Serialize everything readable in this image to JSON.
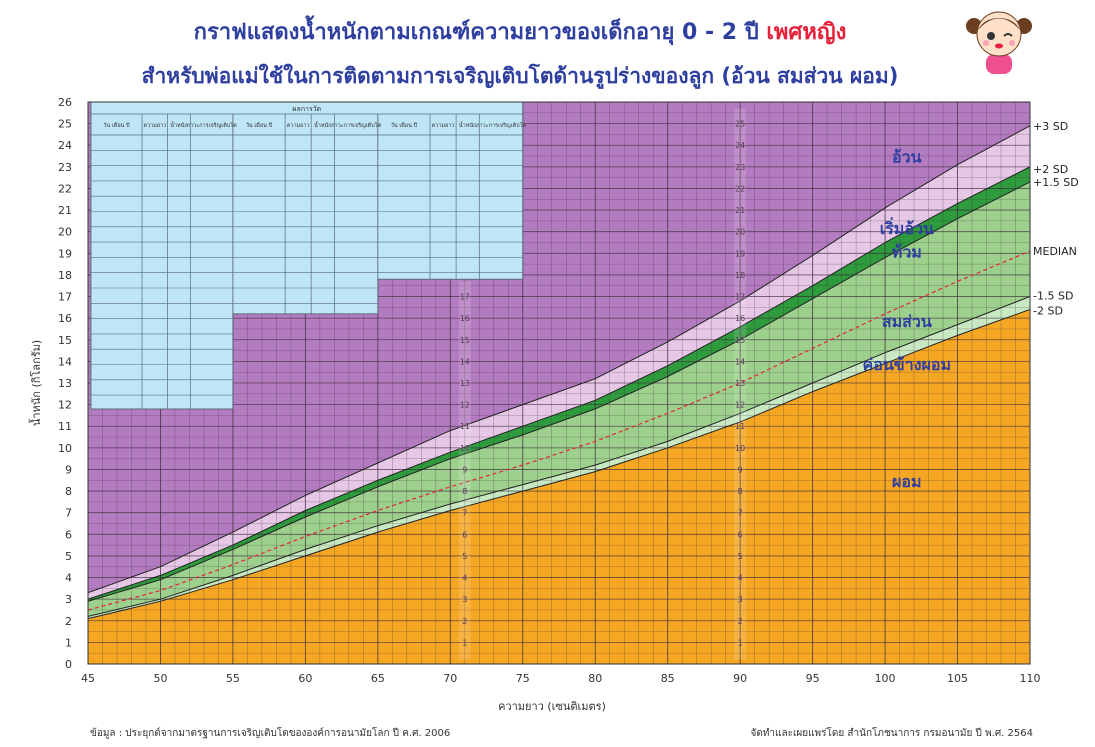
{
  "header": {
    "title_main": "กราฟแสดงน้ำหนักตามเกณฑ์ความยาวของเด็กอายุ 0 - 2 ปี",
    "title_gender": "เพศหญิง",
    "subtitle": "สำหรับพ่อแม่ใช้ในการติดตามการเจริญเติบโตด้านรูปร่างของลูก (อ้วน สมส่วน ผอม)"
  },
  "footer": {
    "source": "ข้อมูล : ประยุกต์จากมาตรฐานการเจริญเติบโตขององค์การอนามัยโลก ปี ค.ศ. 2006",
    "publisher": "จัดทำและเผยแพร่โดย สำนักโภชนาการ กรมอนามัย ปี พ.ศ. 2564"
  },
  "record_table": {
    "title": "ผลการวัด",
    "columns": [
      "วัน เดือน ปี",
      "ความยาว",
      "น้ำหนัก",
      "ภาวะการเจริญเติบโต"
    ]
  },
  "colors": {
    "obese": "#b47cc0",
    "overweight": "#e6c7e6",
    "risk": "#2e9b3c",
    "normal": "#9dd08c",
    "low_normal": "#c7e8c0",
    "thin": "#f5a623",
    "table": "#bfe6f7",
    "median": "#e8213a",
    "title": "#2f3fa0"
  },
  "chart_data": {
    "type": "line",
    "xlabel": "ความยาว (เซนติเมตร)",
    "ylabel": "น้ำหนัก (กิโลกรัม)",
    "xlim": [
      45,
      110
    ],
    "ylim": [
      0,
      26
    ],
    "x_ticks": [
      45,
      50,
      55,
      60,
      65,
      70,
      75,
      80,
      85,
      90,
      95,
      100,
      105,
      110
    ],
    "y_ticks": [
      0,
      1,
      2,
      3,
      4,
      5,
      6,
      7,
      8,
      9,
      10,
      11,
      12,
      13,
      14,
      15,
      16,
      17,
      18,
      19,
      20,
      21,
      22,
      23,
      24,
      25,
      26
    ],
    "grid": true,
    "x": [
      45,
      50,
      55,
      60,
      65,
      70,
      75,
      80,
      85,
      90,
      95,
      100,
      105,
      110
    ],
    "series": [
      {
        "name": "+3 SD",
        "values": [
          3.3,
          4.5,
          6.1,
          7.8,
          9.3,
          10.8,
          12.0,
          13.2,
          14.9,
          16.8,
          18.9,
          21.1,
          23.1,
          24.9
        ]
      },
      {
        "name": "+2 SD",
        "values": [
          3.0,
          4.1,
          5.5,
          7.1,
          8.5,
          9.8,
          11.0,
          12.2,
          13.8,
          15.6,
          17.5,
          19.5,
          21.3,
          23.0
        ]
      },
      {
        "name": "+1.5 SD",
        "values": [
          2.9,
          3.9,
          5.3,
          6.8,
          8.2,
          9.5,
          10.6,
          11.8,
          13.3,
          15.0,
          16.9,
          18.8,
          20.6,
          22.3
        ]
      },
      {
        "name": "MEDIAN",
        "values": [
          2.5,
          3.4,
          4.6,
          5.9,
          7.1,
          8.2,
          9.2,
          10.3,
          11.6,
          13.0,
          14.6,
          16.2,
          17.7,
          19.1
        ]
      },
      {
        "name": "-1.5 SD",
        "values": [
          2.2,
          3.0,
          4.1,
          5.3,
          6.4,
          7.4,
          8.3,
          9.2,
          10.3,
          11.6,
          13.0,
          14.4,
          15.7,
          17.0
        ]
      },
      {
        "name": "-2 SD",
        "values": [
          2.1,
          2.9,
          3.9,
          5.0,
          6.1,
          7.1,
          8.0,
          8.9,
          10.0,
          11.2,
          12.6,
          13.9,
          15.2,
          16.4
        ]
      }
    ],
    "zones": [
      {
        "label": "อ้วน",
        "x": 101.5,
        "y": 23.2
      },
      {
        "label": "เริ่มอ้วน",
        "x": 101.5,
        "y": 19.9
      },
      {
        "label": "ท้วม",
        "x": 101.5,
        "y": 18.8
      },
      {
        "label": "สมส่วน",
        "x": 101.5,
        "y": 15.6
      },
      {
        "label": "ค่อนข้างผอม",
        "x": 101.5,
        "y": 13.6
      },
      {
        "label": "ผอม",
        "x": 101.5,
        "y": 8.2
      }
    ],
    "inner_scale_left": {
      "x": 71,
      "labels": [
        1,
        2,
        3,
        4,
        5,
        6,
        7,
        8,
        9,
        10,
        11,
        12,
        13,
        14,
        15,
        16,
        17
      ]
    },
    "inner_scale_right": {
      "x": 90,
      "labels": [
        1,
        2,
        3,
        4,
        5,
        6,
        7,
        8,
        9,
        10,
        11,
        12,
        13,
        14,
        15,
        16,
        17,
        18,
        19,
        20,
        21,
        22,
        23,
        24,
        25
      ]
    }
  }
}
